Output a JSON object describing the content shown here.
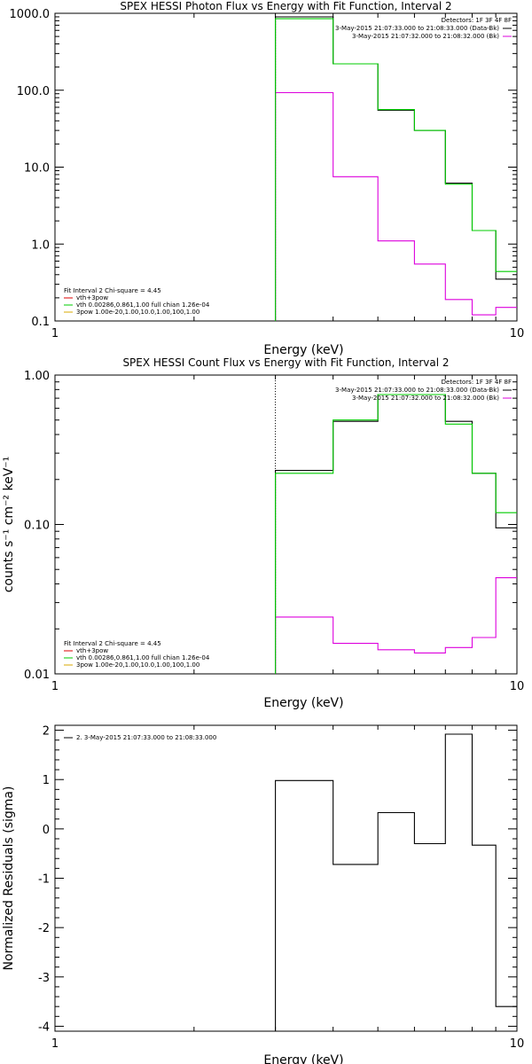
{
  "chart_data": [
    {
      "type": "line",
      "title": "SPEX HESSI Photon Flux vs Energy with Fit Function, Interval 2",
      "xlabel": "Energy (keV)",
      "ylabel": "",
      "xscale": "log",
      "yscale": "log",
      "xlim": [
        1,
        10
      ],
      "ylim": [
        0.1,
        1000
      ],
      "xticks": [
        "1",
        "10"
      ],
      "yticks": [
        "0.1",
        "1.0",
        "10.0",
        "100.0",
        "1000.0"
      ],
      "ytick_values": [
        0.1,
        1,
        10,
        100,
        1000
      ],
      "vline_x": 3.0,
      "edges": [
        3.0,
        4.0,
        5.0,
        6.0,
        7.0,
        8.0,
        9.0,
        10.0
      ],
      "series": [
        {
          "name": "3-May-2015 21:07:33.000 to 21:08:33.000 (Data-Bk)",
          "color": "#000000",
          "values": [
            900,
            220,
            55,
            30,
            6.2,
            1.5,
            0.35
          ]
        },
        {
          "name": "3-May-2015 21:07:32.000 to 21:08:32.000 (Bk)",
          "color": "#dd00dd",
          "values": [
            93,
            7.5,
            1.1,
            0.55,
            0.19,
            0.12,
            0.15
          ]
        },
        {
          "name": "vth 0.00286,0.861,1.00  full chian 1.26e-04",
          "color": "#00cc00",
          "values": [
            850,
            220,
            56,
            30,
            6.0,
            1.5,
            0.44
          ]
        }
      ],
      "legend_right": {
        "header": "Detectors: 1F 3F 4F 8F",
        "items": [
          {
            "text": "3-May-2015 21:07:33.000 to 21:08:33.000 (Data-Bk)",
            "color": "#000000"
          },
          {
            "text": "3-May-2015 21:07:32.000 to 21:08:32.000 (Bk)",
            "color": "#dd00dd"
          }
        ]
      },
      "legend_left": {
        "header": "Fit Interval 2   Chi-square = 4.45",
        "items": [
          {
            "text": "vth+3pow",
            "color": "#dd0000"
          },
          {
            "text": "vth 0.00286,0.861,1.00  full chian 1.26e-04",
            "color": "#00cc00"
          },
          {
            "text": "3pow 1.00e-20,1.00,10.0,1.00,100,1.00",
            "color": "#d9a800"
          }
        ]
      }
    },
    {
      "type": "line",
      "title": "SPEX HESSI Count Flux vs Energy with Fit Function, Interval 2",
      "xlabel": "Energy (keV)",
      "ylabel": "counts s⁻¹ cm⁻² keV⁻¹",
      "xscale": "log",
      "yscale": "log",
      "xlim": [
        1,
        10
      ],
      "ylim": [
        0.01,
        1.0
      ],
      "xticks": [
        "1",
        "10"
      ],
      "yticks": [
        "0.01",
        "0.10",
        "1.00"
      ],
      "ytick_values": [
        0.01,
        0.1,
        1.0
      ],
      "vline_x": 3.0,
      "edges": [
        3.0,
        4.0,
        5.0,
        6.0,
        7.0,
        8.0,
        9.0,
        10.0
      ],
      "series": [
        {
          "name": "3-May-2015 21:07:33.000 to 21:08:33.000 (Data-Bk)",
          "color": "#000000",
          "values": [
            0.23,
            0.49,
            0.74,
            0.74,
            0.49,
            0.22,
            0.095
          ]
        },
        {
          "name": "3-May-2015 21:07:32.000 to 21:08:32.000 (Bk)",
          "color": "#dd00dd",
          "values": [
            0.024,
            0.016,
            0.0145,
            0.0138,
            0.015,
            0.0175,
            0.044
          ]
        },
        {
          "name": "vth 0.00286,0.861,1.00  full chian 1.26e-04",
          "color": "#00cc00",
          "values": [
            0.22,
            0.5,
            0.74,
            0.74,
            0.47,
            0.22,
            0.12
          ]
        }
      ],
      "legend_right": {
        "header": "Detectors: 1F 3F 4F 8F",
        "items": [
          {
            "text": "3-May-2015 21:07:33.000 to 21:08:33.000 (Data-Bk)",
            "color": "#000000"
          },
          {
            "text": "3-May-2015 21:07:32.000 to 21:08:32.000 (Bk)",
            "color": "#dd00dd"
          }
        ]
      },
      "legend_left": {
        "header": "Fit Interval 2   Chi-square = 4.45",
        "items": [
          {
            "text": "vth+3pow",
            "color": "#dd0000"
          },
          {
            "text": "vth 0.00286,0.861,1.00  full chian 1.26e-04",
            "color": "#00cc00"
          },
          {
            "text": "3pow 1.00e-20,1.00,10.0,1.00,100,1.00",
            "color": "#d9a800"
          }
        ]
      }
    },
    {
      "type": "line",
      "title": "",
      "xlabel": "Energy (keV)",
      "ylabel": "Normalized Residuals (sigma)",
      "xscale": "log",
      "yscale": "linear",
      "xlim": [
        1,
        10
      ],
      "ylim": [
        -4.1,
        2.1
      ],
      "xticks": [
        "1",
        "10"
      ],
      "yticks": [
        "2",
        "1",
        "0",
        "-1",
        "-2",
        "-3",
        "-4"
      ],
      "ytick_values": [
        2,
        1,
        0,
        -1,
        -2,
        -3,
        -4
      ],
      "edges": [
        3.0,
        4.0,
        5.0,
        6.0,
        7.0,
        8.0,
        9.0,
        10.0
      ],
      "series": [
        {
          "name": "2. 3-May-2015 21:07:33.000 to 21:08:33.000",
          "color": "#000000",
          "values": [
            0.98,
            -0.72,
            0.33,
            -0.3,
            1.92,
            -0.33,
            -3.6
          ]
        }
      ],
      "legend_left_top": {
        "items": [
          {
            "text": "2. 3-May-2015 21:07:33.000 to 21:08:33.000",
            "color": "#000000"
          }
        ]
      }
    }
  ]
}
